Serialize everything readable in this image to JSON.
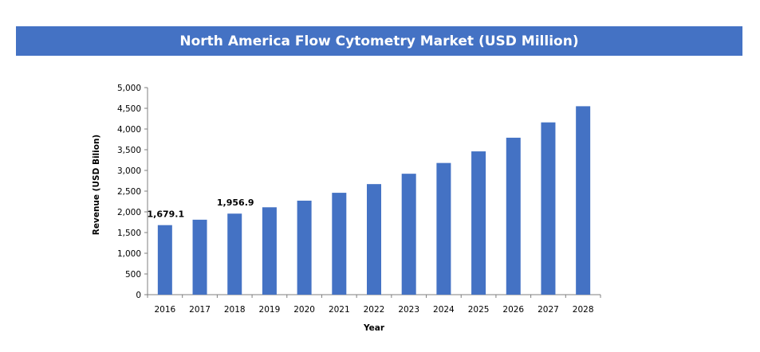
{
  "chart_data": {
    "type": "bar",
    "title": "North America Flow Cytometry Market (USD Million)",
    "xlabel": "Year",
    "ylabel": "Revenue (USD Bilion)",
    "categories": [
      "2016",
      "2017",
      "2018",
      "2019",
      "2020",
      "2021",
      "2022",
      "2023",
      "2024",
      "2025",
      "2026",
      "2027",
      "2028"
    ],
    "values": [
      1679.1,
      1810,
      1956.9,
      2110,
      2270,
      2460,
      2670,
      2920,
      3180,
      3460,
      3790,
      4160,
      4550
    ],
    "ylim": [
      0,
      5000
    ],
    "yticks": [
      "0",
      "500",
      "1,000",
      "1,500",
      "2,000",
      "2,500",
      "3,000",
      "3,500",
      "4,000",
      "4,500",
      "5,000"
    ],
    "data_labels": [
      {
        "index": 0,
        "text": "1,679.1"
      },
      {
        "index": 2,
        "text": "1,956.9"
      }
    ],
    "bar_color": "#4472c4",
    "grid": false,
    "legend": "none"
  }
}
